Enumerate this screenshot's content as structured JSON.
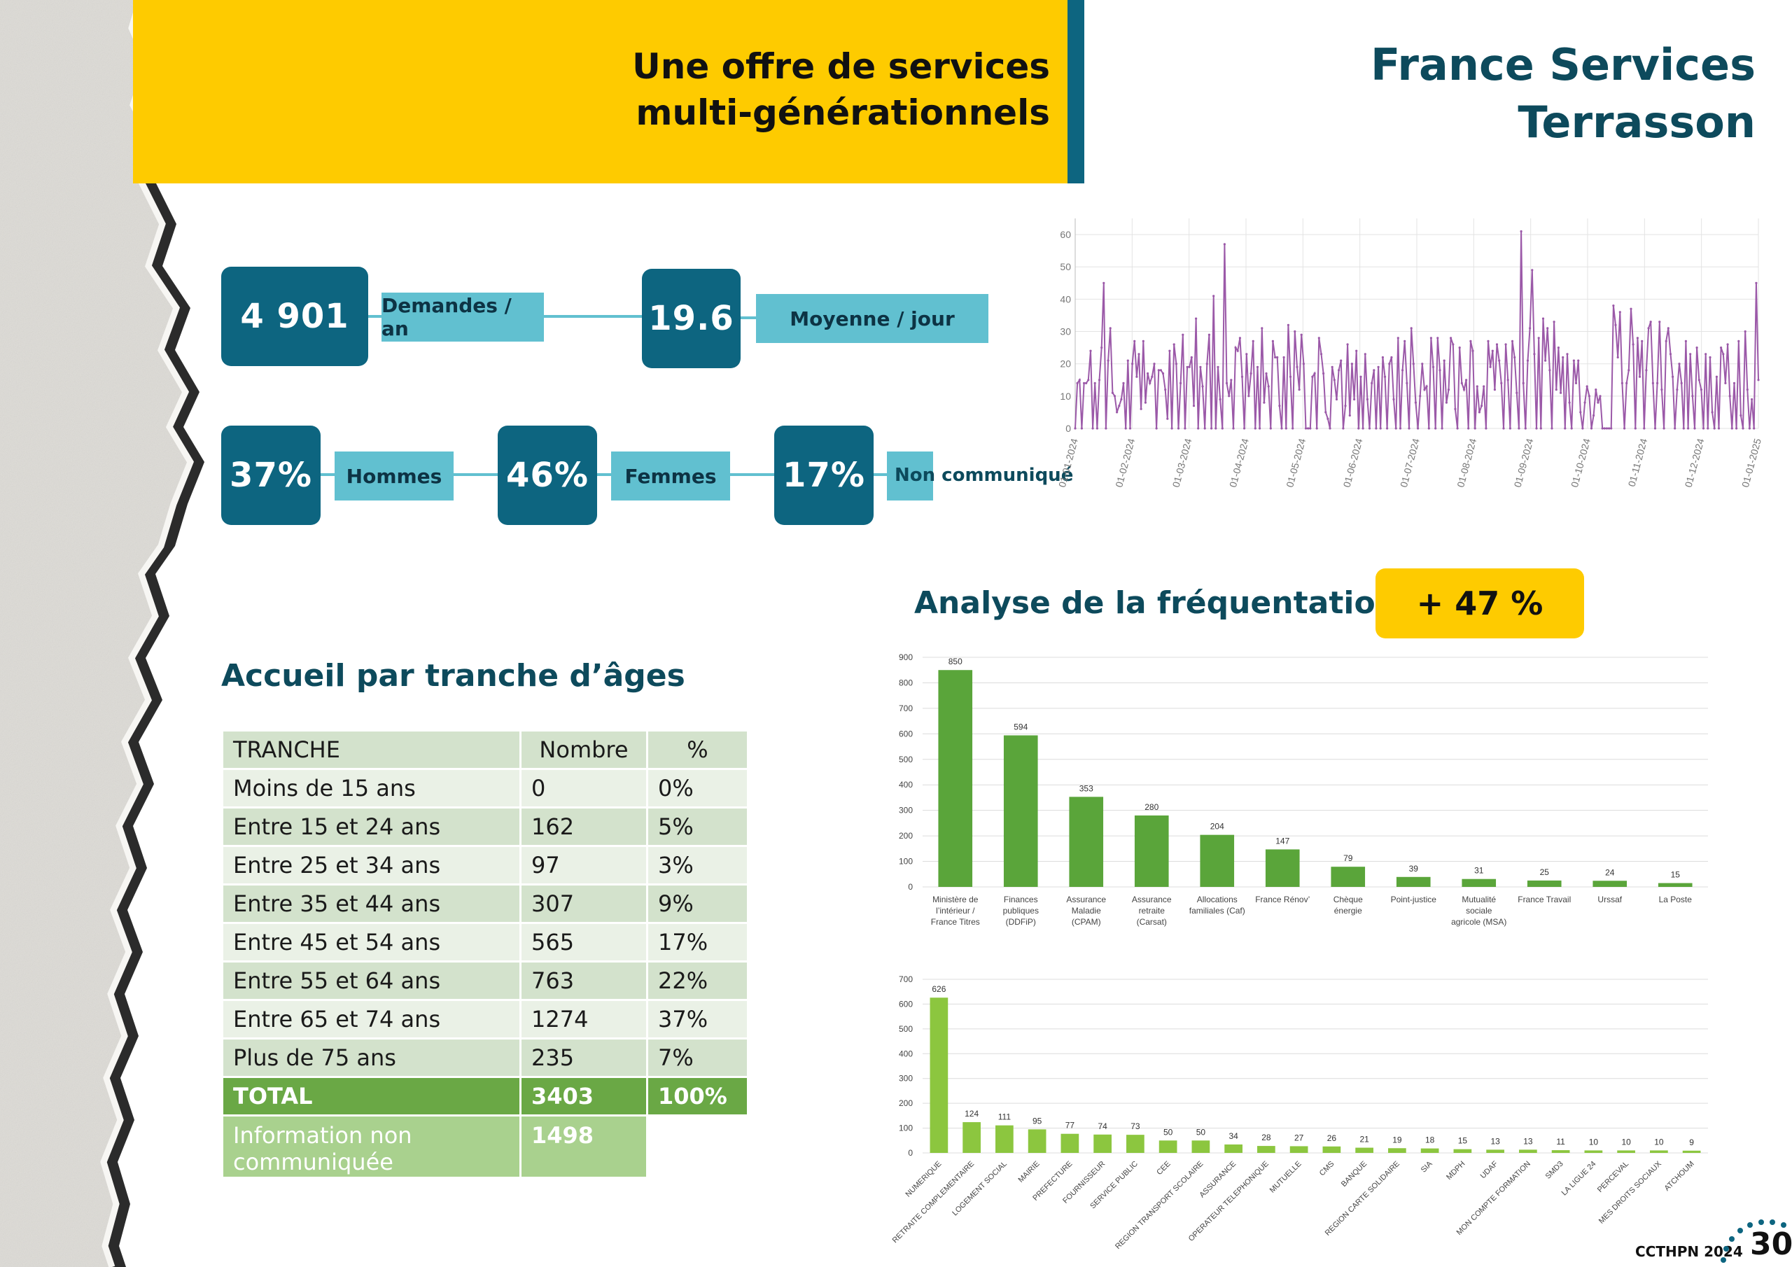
{
  "header": {
    "band_title_line1": "Une offre de services",
    "band_title_line2": "multi-générationnels",
    "brand_line1": "France Services",
    "brand_line2": "Terrasson"
  },
  "kpis": {
    "demandes_value": "4 901",
    "demandes_label": "Demandes / an",
    "moyenne_value": "19.6",
    "moyenne_label": "Moyenne / jour",
    "hommes_value": "37%",
    "hommes_label": "Hommes",
    "femmes_value": "46%",
    "femmes_label": "Femmes",
    "nc_value": "17%",
    "nc_label": "Non communiqué"
  },
  "frequentation": {
    "title": "Analyse de la fréquentation",
    "badge": "+ 47 %"
  },
  "ages": {
    "title": "Accueil par tranche d’âges",
    "headers": [
      "TRANCHE",
      "Nombre",
      "%"
    ],
    "rows": [
      [
        "Moins de 15 ans",
        "0",
        "0%"
      ],
      [
        "Entre 15 et 24 ans",
        "162",
        "5%"
      ],
      [
        "Entre 25 et 34 ans",
        "97",
        "3%"
      ],
      [
        "Entre 35 et 44 ans",
        "307",
        "9%"
      ],
      [
        "Entre 45 et 54 ans",
        "565",
        "17%"
      ],
      [
        "Entre 55 et 64 ans",
        "763",
        "22%"
      ],
      [
        "Entre 65 et 74 ans",
        "1274",
        "37%"
      ],
      [
        "Plus de 75 ans",
        "235",
        "7%"
      ]
    ],
    "total": [
      "TOTAL",
      "3403",
      "100%"
    ],
    "info_label": "Information non communiquée",
    "info_value": "1498"
  },
  "footer": {
    "label": "CCTHPN 2024",
    "page": "30"
  },
  "colors": {
    "yellow": "#fecb00",
    "teal_dark": "#0d6580",
    "teal_light": "#61c0d0",
    "navy_text": "#0d4a5c",
    "line_purple": "#9b59a8",
    "bar_green": "#5aa53a",
    "bar_lightgreen": "#8cc63f"
  },
  "chart_data": [
    {
      "type": "line",
      "title": "",
      "xlabel": "",
      "ylabel": "",
      "ylim": [
        0,
        65
      ],
      "yticks": [
        0,
        10,
        20,
        30,
        40,
        50,
        60
      ],
      "xtick_labels": [
        "01-01-2024",
        "01-02-2024",
        "01-03-2024",
        "01-04-2024",
        "01-05-2024",
        "01-06-2024",
        "01-07-2024",
        "01-08-2024",
        "01-09-2024",
        "01-10-2024",
        "01-11-2024",
        "01-12-2024",
        "01-01-2025"
      ],
      "series": [
        {
          "name": "Demandes par jour",
          "daily_values": [
            0,
            14,
            15,
            0,
            14,
            14,
            15,
            24,
            0,
            14,
            0,
            15,
            25,
            45,
            0,
            21,
            31,
            11,
            10,
            5,
            7,
            9,
            14,
            0,
            21,
            0,
            20,
            27,
            16,
            23,
            6,
            27,
            8,
            17,
            14,
            16,
            20,
            0,
            18,
            18,
            17,
            12,
            3,
            24,
            0,
            26,
            20,
            0,
            14,
            29,
            0,
            19,
            19,
            22,
            7,
            34,
            0,
            19,
            13,
            0,
            20,
            29,
            0,
            41,
            0,
            19,
            9,
            0,
            57,
            14,
            10,
            15,
            0,
            25,
            24,
            28,
            16,
            0,
            23,
            10,
            17,
            27,
            0,
            19,
            0,
            31,
            8,
            17,
            13,
            0,
            27,
            22,
            22,
            7,
            0,
            22,
            0,
            32,
            16,
            0,
            30,
            19,
            12,
            29,
            20,
            0,
            0,
            0,
            16,
            17,
            0,
            28,
            23,
            17,
            5,
            3,
            0,
            19,
            15,
            9,
            18,
            21,
            0,
            7,
            26,
            4,
            20,
            9,
            24,
            0,
            16,
            0,
            23,
            9,
            0,
            14,
            18,
            0,
            19,
            0,
            22,
            16,
            0,
            20,
            22,
            9,
            0,
            28,
            0,
            18,
            27,
            14,
            0,
            31,
            20,
            8,
            0,
            10,
            20,
            12,
            13,
            0,
            28,
            19,
            0,
            28,
            18,
            0,
            21,
            8,
            12,
            28,
            26,
            6,
            0,
            25,
            14,
            12,
            15,
            0,
            27,
            24,
            0,
            13,
            5,
            7,
            13,
            0,
            27,
            19,
            24,
            12,
            26,
            21,
            14,
            0,
            26,
            15,
            0,
            27,
            22,
            11,
            0,
            61,
            14,
            0,
            21,
            31,
            49,
            23,
            0,
            28,
            0,
            34,
            21,
            31,
            18,
            0,
            33,
            12,
            25,
            11,
            22,
            0,
            23,
            8,
            0,
            21,
            14,
            21,
            5,
            0,
            8,
            13,
            10,
            0,
            4,
            12,
            8,
            10,
            0,
            0,
            0,
            0,
            0,
            38,
            32,
            22,
            36,
            14,
            0,
            14,
            18,
            37,
            26,
            0,
            28,
            16,
            27,
            0,
            18,
            31,
            33,
            14,
            0,
            14,
            33,
            12,
            0,
            27,
            31,
            23,
            16,
            0,
            12,
            20,
            14,
            0,
            27,
            0,
            23,
            10,
            0,
            25,
            15,
            12,
            0,
            23,
            0,
            22,
            5,
            0,
            16,
            0,
            25,
            23,
            14,
            26,
            10,
            0,
            14,
            0,
            27,
            4,
            0,
            30,
            12,
            0,
            9,
            0,
            45,
            15
          ]
        }
      ]
    },
    {
      "type": "bar",
      "title": "",
      "ylim": [
        0,
        900
      ],
      "yticks": [
        0,
        100,
        200,
        300,
        400,
        500,
        600,
        700,
        800,
        900
      ],
      "categories": [
        [
          "Ministère de",
          "l’intérieur /",
          "France Titres"
        ],
        [
          "Finances",
          "publiques",
          "(DDFiP)"
        ],
        [
          "Assurance",
          "Maladie",
          "(CPAM)"
        ],
        [
          "Assurance",
          "retraite",
          "(Carsat)"
        ],
        [
          "Allocations",
          "familiales (Caf)"
        ],
        [
          "France Rénov’"
        ],
        [
          "Chèque",
          "énergie"
        ],
        [
          "Point-justice"
        ],
        [
          "Mutualité",
          "sociale",
          "agricole (MSA)"
        ],
        [
          "France Travail"
        ],
        [
          "Urssaf"
        ],
        [
          "La Poste"
        ]
      ],
      "values": [
        850,
        594,
        353,
        280,
        204,
        147,
        79,
        39,
        31,
        25,
        24,
        15
      ],
      "value_labels": [
        "850",
        "594",
        "353",
        "280",
        "204",
        "147",
        "79",
        "39",
        "31",
        "25",
        "24",
        "15"
      ]
    },
    {
      "type": "bar",
      "title": "",
      "ylim": [
        0,
        700
      ],
      "yticks": [
        0,
        100,
        200,
        300,
        400,
        500,
        600,
        700
      ],
      "categories": [
        "NUMERIQUE",
        "RETRAITE COMPLEMENTAIRE",
        "LOGEMENT SOCIAL",
        "MAIRIE",
        "PREFECTURE",
        "FOURNISSEUR",
        "SERVICE PUBLIC",
        "CEE",
        "REGION TRANSPORT SCOLAIRE",
        "ASSURANCE",
        "OPERATEUR TELEPHONIQUE",
        "MUTUELLE",
        "CMS",
        "BANQUE",
        "REGION CARTE SOLIDAIRE",
        "SIA",
        "MDPH",
        "UDAF",
        "MON COMPTE FORMATION",
        "SMD3",
        "LA LIGUE 24",
        "PERCEVAL",
        "MES DROITS SOCIAUX",
        "ATCHOUM"
      ],
      "values": [
        626,
        124,
        111,
        95,
        77,
        74,
        73,
        50,
        50,
        34,
        28,
        27,
        26,
        21,
        19,
        18,
        15,
        13,
        13,
        11,
        10,
        10,
        10,
        9
      ],
      "value_labels": [
        "626",
        "124",
        "111",
        "95",
        "77",
        "74",
        "73",
        "50",
        "50",
        "34",
        "28",
        "27",
        "26",
        "21",
        "19",
        "18",
        "15",
        "13",
        "13",
        "11",
        "10",
        "10",
        "10",
        "9"
      ]
    }
  ]
}
